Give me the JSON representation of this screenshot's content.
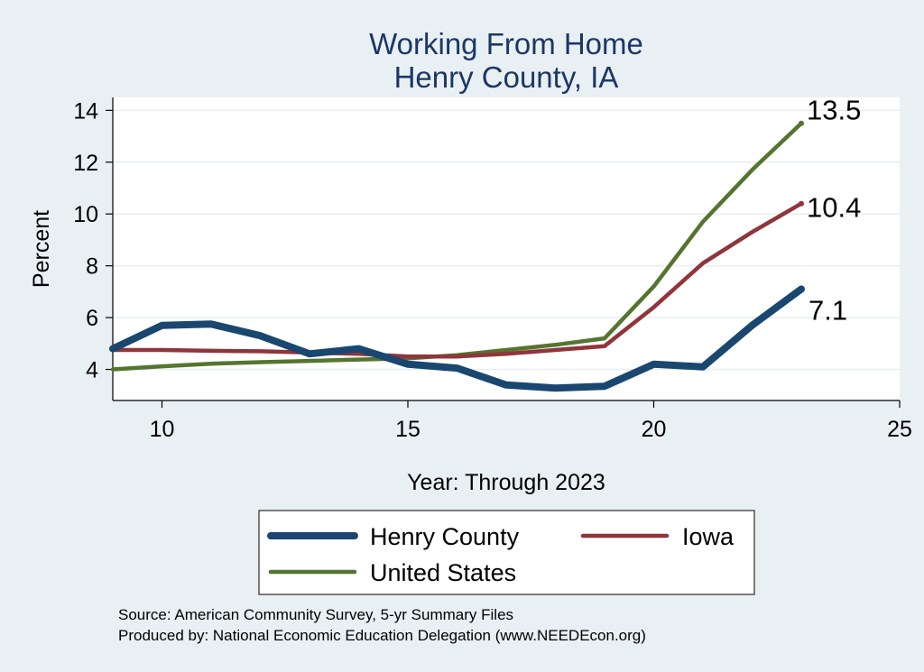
{
  "chart_data": {
    "type": "line",
    "title": [
      "Working From Home",
      "Henry County, IA"
    ],
    "xlabel": "Year: Through 2023",
    "ylabel": "Percent",
    "xlim": [
      9,
      25
    ],
    "ylim": [
      2.8,
      14.5
    ],
    "xticks": [
      10,
      15,
      20,
      25
    ],
    "yticks": [
      4,
      6,
      8,
      10,
      12,
      14
    ],
    "grid": "horizontal",
    "legend_position": "bottom",
    "x": [
      9,
      10,
      11,
      12,
      13,
      14,
      15,
      16,
      17,
      18,
      19,
      20,
      21,
      22,
      23
    ],
    "series": [
      {
        "name": "Henry County",
        "color": "#1a476f",
        "values": [
          4.8,
          5.7,
          5.75,
          5.3,
          4.6,
          4.8,
          4.2,
          4.05,
          3.4,
          3.28,
          3.35,
          4.2,
          4.1,
          5.7,
          7.1
        ],
        "end_label": "7.1"
      },
      {
        "name": "Iowa",
        "color": "#90353b",
        "values": [
          4.75,
          4.75,
          4.72,
          4.7,
          4.65,
          4.6,
          4.5,
          4.5,
          4.6,
          4.75,
          4.9,
          6.4,
          8.1,
          9.3,
          10.4
        ],
        "end_label": "10.4"
      },
      {
        "name": "United States",
        "color": "#55752f",
        "values": [
          4.0,
          4.12,
          4.22,
          4.28,
          4.33,
          4.38,
          4.43,
          4.55,
          4.75,
          4.95,
          5.2,
          7.2,
          9.7,
          11.7,
          13.5
        ],
        "end_label": "13.5"
      }
    ]
  },
  "source": {
    "line1": "Source: American Community Survey, 5-yr Summary Files",
    "line2": "Produced by: National Economic Education Delegation (www.NEEDEcon.org)"
  }
}
